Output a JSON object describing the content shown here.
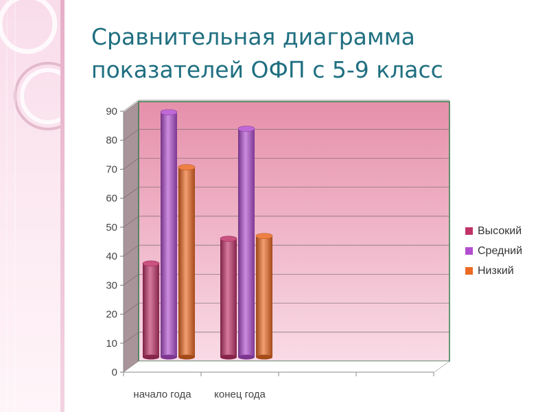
{
  "slide": {
    "title_line1": "Сравнительная диаграмма",
    "title_line2": "показателей ОФП с 5-9 класс"
  },
  "chart_data": {
    "type": "bar",
    "categories": [
      "начало года",
      "конец года"
    ],
    "series": [
      {
        "name": "Высокий",
        "values": [
          34,
          43
        ],
        "color": "#c0336a"
      },
      {
        "name": "Средний",
        "values": [
          89,
          83
        ],
        "color": "#b24fcf"
      },
      {
        "name": "Низкий",
        "values": [
          69,
          44
        ],
        "color": "#ec6a24"
      }
    ],
    "y_ticks": [
      "0",
      "10",
      "20",
      "30",
      "40",
      "50",
      "60",
      "70",
      "80",
      "90"
    ],
    "ylim": [
      0,
      90
    ],
    "grid": true,
    "legend_position": "right",
    "colors": {
      "wall_top": "#e690ab",
      "wall_bottom": "#f9dbe6",
      "side_wall": "#a9949a"
    }
  }
}
